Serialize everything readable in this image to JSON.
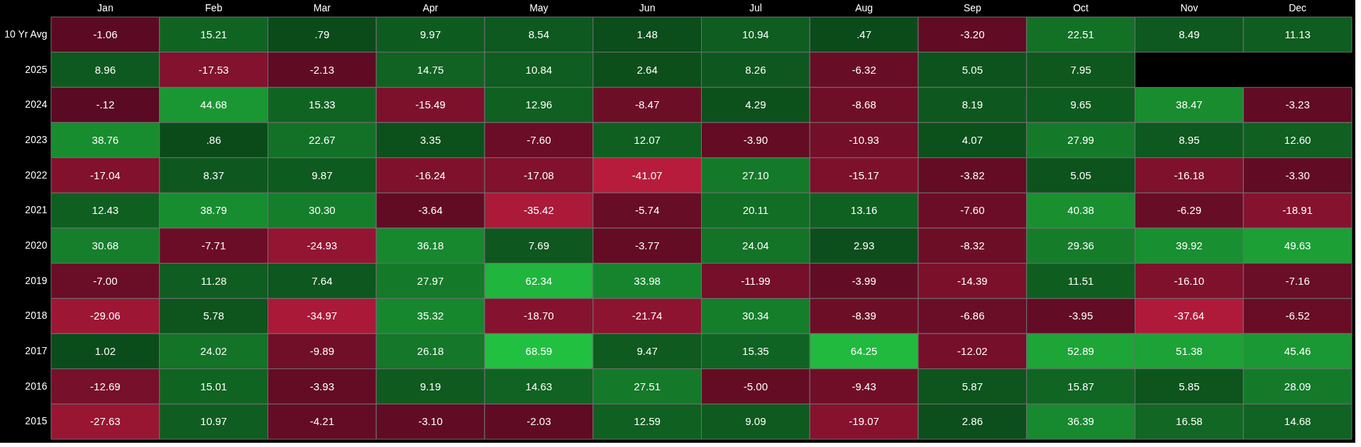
{
  "chart_data": {
    "type": "heatmap",
    "categories": [
      "Jan",
      "Feb",
      "Mar",
      "Apr",
      "May",
      "Jun",
      "Jul",
      "Aug",
      "Sep",
      "Oct",
      "Nov",
      "Dec"
    ],
    "y_categories": [
      "10 Yr Avg",
      "2025",
      "2024",
      "2023",
      "2022",
      "2021",
      "2020",
      "2019",
      "2018",
      "2017",
      "2016",
      "2015"
    ],
    "cells": [
      [
        -1.06,
        15.21,
        0.79,
        9.97,
        8.54,
        1.48,
        10.94,
        0.47,
        -3.2,
        22.51,
        8.49,
        11.13
      ],
      [
        8.96,
        -17.53,
        -2.13,
        14.75,
        10.84,
        2.64,
        8.26,
        -6.32,
        5.05,
        7.95,
        null,
        null
      ],
      [
        -0.12,
        44.68,
        15.33,
        -15.49,
        12.96,
        -8.47,
        4.29,
        -8.68,
        8.19,
        9.65,
        38.47,
        -3.23
      ],
      [
        38.76,
        0.86,
        22.67,
        3.35,
        -7.6,
        12.07,
        -3.9,
        -10.93,
        4.07,
        27.99,
        8.95,
        12.6
      ],
      [
        -17.04,
        8.37,
        9.87,
        -16.24,
        -17.08,
        -41.07,
        27.1,
        -15.17,
        -3.82,
        5.05,
        -16.18,
        -3.3
      ],
      [
        12.43,
        38.79,
        30.3,
        -3.64,
        -35.42,
        -5.74,
        20.11,
        13.16,
        -7.6,
        40.38,
        -6.29,
        -18.91
      ],
      [
        30.68,
        -7.71,
        -24.93,
        36.18,
        7.69,
        -3.77,
        24.04,
        2.93,
        -8.32,
        29.36,
        39.92,
        49.63
      ],
      [
        -7.0,
        11.28,
        7.64,
        27.97,
        62.34,
        33.98,
        -11.99,
        -3.99,
        -14.39,
        11.51,
        -16.1,
        -7.16
      ],
      [
        -29.06,
        5.78,
        -34.97,
        35.32,
        -18.7,
        -21.74,
        30.34,
        -8.39,
        -6.86,
        -3.95,
        -37.64,
        -6.52
      ],
      [
        1.02,
        24.02,
        -9.89,
        26.18,
        68.59,
        9.47,
        15.35,
        64.25,
        -12.02,
        52.89,
        51.38,
        45.46
      ],
      [
        -12.69,
        15.01,
        -3.93,
        9.19,
        14.63,
        27.51,
        -5.0,
        -9.43,
        5.87,
        15.87,
        5.85,
        28.09
      ],
      [
        -27.63,
        10.97,
        -4.21,
        -3.1,
        -2.03,
        12.59,
        9.09,
        -19.07,
        2.86,
        36.39,
        16.58,
        14.68
      ]
    ],
    "cell_labels": [
      [
        "-1.06",
        "15.21",
        ".79",
        "9.97",
        "8.54",
        "1.48",
        "10.94",
        ".47",
        "-3.20",
        "22.51",
        "8.49",
        "11.13"
      ],
      [
        "8.96",
        "-17.53",
        "-2.13",
        "14.75",
        "10.84",
        "2.64",
        "8.26",
        "-6.32",
        "5.05",
        "7.95",
        null,
        null
      ],
      [
        "-.12",
        "44.68",
        "15.33",
        "-15.49",
        "12.96",
        "-8.47",
        "4.29",
        "-8.68",
        "8.19",
        "9.65",
        "38.47",
        "-3.23"
      ],
      [
        "38.76",
        ".86",
        "22.67",
        "3.35",
        "-7.60",
        "12.07",
        "-3.90",
        "-10.93",
        "4.07",
        "27.99",
        "8.95",
        "12.60"
      ],
      [
        "-17.04",
        "8.37",
        "9.87",
        "-16.24",
        "-17.08",
        "-41.07",
        "27.10",
        "-15.17",
        "-3.82",
        "5.05",
        "-16.18",
        "-3.30"
      ],
      [
        "12.43",
        "38.79",
        "30.30",
        "-3.64",
        "-35.42",
        "-5.74",
        "20.11",
        "13.16",
        "-7.60",
        "40.38",
        "-6.29",
        "-18.91"
      ],
      [
        "30.68",
        "-7.71",
        "-24.93",
        "36.18",
        "7.69",
        "-3.77",
        "24.04",
        "2.93",
        "-8.32",
        "29.36",
        "39.92",
        "49.63"
      ],
      [
        "-7.00",
        "11.28",
        "7.64",
        "27.97",
        "62.34",
        "33.98",
        "-11.99",
        "-3.99",
        "-14.39",
        "11.51",
        "-16.10",
        "-7.16"
      ],
      [
        "-29.06",
        "5.78",
        "-34.97",
        "35.32",
        "-18.70",
        "-21.74",
        "30.34",
        "-8.39",
        "-6.86",
        "-3.95",
        "-37.64",
        "-6.52"
      ],
      [
        "1.02",
        "24.02",
        "-9.89",
        "26.18",
        "68.59",
        "9.47",
        "15.35",
        "64.25",
        "-12.02",
        "52.89",
        "51.38",
        "45.46"
      ],
      [
        "-12.69",
        "15.01",
        "-3.93",
        "9.19",
        "14.63",
        "27.51",
        "-5.00",
        "-9.43",
        "5.87",
        "15.87",
        "5.85",
        "28.09"
      ],
      [
        "-27.63",
        "10.97",
        "-4.21",
        "-3.10",
        "-2.03",
        "12.59",
        "9.09",
        "-19.07",
        "2.86",
        "36.39",
        "16.58",
        "14.68"
      ]
    ]
  }
}
